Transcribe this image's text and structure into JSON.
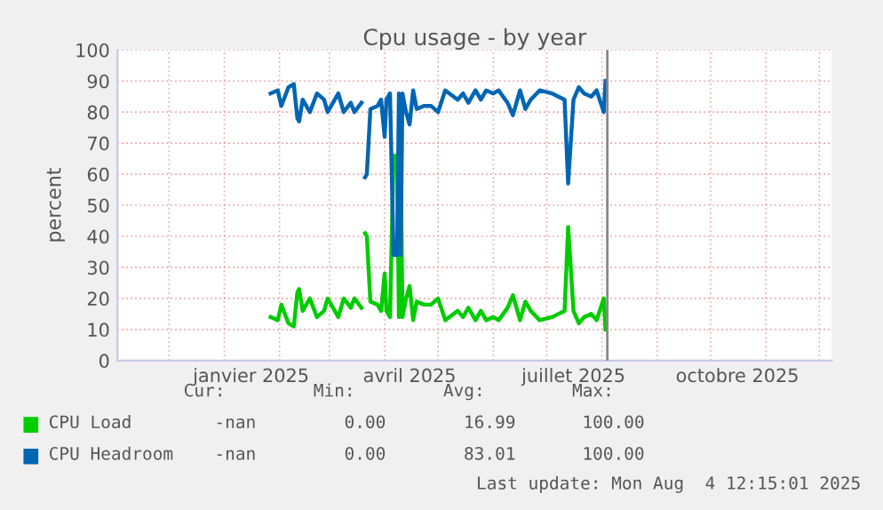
{
  "chart_data": {
    "type": "line",
    "title": "Cpu usage - by year",
    "ylabel": "percent",
    "x": [
      "2025-01-27",
      "2025-01-31",
      "2025-02-02",
      "2025-02-06",
      "2025-02-09",
      "2025-02-11",
      "2025-02-12",
      "2025-02-14",
      "2025-02-18",
      "2025-02-22",
      "2025-02-26",
      "2025-02-28",
      "2025-03-04",
      "2025-03-06",
      "2025-03-09",
      "2025-03-13",
      "2025-03-15",
      "2025-03-19",
      "2025-03-20",
      "2025-03-21",
      "2025-03-22",
      "2025-03-24",
      "2025-03-28",
      "2025-03-30",
      "2025-04-01",
      "2025-04-02",
      "2025-04-04",
      "2025-04-06",
      "2025-04-08",
      "2025-04-09",
      "2025-04-10",
      "2025-04-11",
      "2025-04-13",
      "2025-04-15",
      "2025-04-17",
      "2025-04-19",
      "2025-04-23",
      "2025-04-27",
      "2025-05-01",
      "2025-05-05",
      "2025-05-12",
      "2025-05-15",
      "2025-05-18",
      "2025-05-22",
      "2025-05-25",
      "2025-05-28",
      "2025-06-01",
      "2025-06-04",
      "2025-06-09",
      "2025-06-12",
      "2025-06-16",
      "2025-06-19",
      "2025-06-22",
      "2025-06-27",
      "2025-07-04",
      "2025-07-11",
      "2025-07-13",
      "2025-07-16",
      "2025-07-19",
      "2025-07-22",
      "2025-07-26",
      "2025-07-29",
      "2025-08-02",
      "2025-08-03"
    ],
    "series": [
      {
        "name": "CPU Load",
        "color": "#00cc00",
        "values": [
          14,
          13,
          18,
          12,
          11,
          22,
          23,
          16,
          20,
          14,
          16,
          20,
          16,
          14,
          20,
          17,
          20,
          17,
          null,
          41,
          40,
          19,
          18,
          16,
          28,
          16,
          14,
          66,
          66,
          14,
          66,
          14,
          20,
          24,
          13,
          19,
          18,
          18,
          20,
          13,
          16,
          14,
          17,
          13,
          16,
          13,
          14,
          13,
          17,
          21,
          13,
          19,
          16,
          13,
          14,
          16,
          43,
          16,
          12,
          14,
          15,
          13,
          20,
          10
        ]
      },
      {
        "name": "CPU Headroom",
        "color": "#0066b3",
        "values": [
          86,
          87,
          82,
          88,
          89,
          78,
          77,
          84,
          80,
          86,
          84,
          80,
          84,
          86,
          80,
          83,
          80,
          83,
          null,
          59,
          60,
          81,
          82,
          84,
          72,
          84,
          86,
          34,
          34,
          86,
          34,
          86,
          80,
          76,
          87,
          81,
          82,
          82,
          80,
          87,
          84,
          86,
          83,
          87,
          84,
          87,
          86,
          87,
          83,
          79,
          87,
          81,
          84,
          87,
          86,
          84,
          57,
          84,
          88,
          86,
          85,
          87,
          80,
          90
        ]
      }
    ],
    "xlim": [
      "2024-11-02",
      "2025-12-08"
    ],
    "xticks": [
      {
        "value": "2024-12-01",
        "label": null
      },
      {
        "value": "2025-01-01",
        "label": null
      },
      {
        "value": "2025-01-16",
        "label": "janvier 2025"
      },
      {
        "value": "2025-02-01",
        "label": null
      },
      {
        "value": "2025-03-01",
        "label": null
      },
      {
        "value": "2025-04-01",
        "label": null
      },
      {
        "value": "2025-04-15",
        "label": "avril 2025"
      },
      {
        "value": "2025-05-01",
        "label": null
      },
      {
        "value": "2025-06-01",
        "label": null
      },
      {
        "value": "2025-07-01",
        "label": null
      },
      {
        "value": "2025-07-16",
        "label": "juillet 2025"
      },
      {
        "value": "2025-08-01",
        "label": null
      },
      {
        "value": "2025-09-01",
        "label": null
      },
      {
        "value": "2025-10-01",
        "label": null
      },
      {
        "value": "2025-10-16",
        "label": "octobre 2025"
      },
      {
        "value": "2025-11-01",
        "label": null
      },
      {
        "value": "2025-12-01",
        "label": null
      }
    ],
    "ylim": [
      0,
      100
    ],
    "yticks": [
      0,
      10,
      20,
      30,
      40,
      50,
      60,
      70,
      80,
      90,
      100
    ],
    "grid": true,
    "legend": "bottom",
    "line_style": "solid",
    "marker": "none",
    "ref_lines": [
      {
        "axis": "x",
        "value": "2025-08-04",
        "color": "#888888"
      }
    ],
    "annotations": [
      "Cur:",
      "Min:",
      "Avg:",
      "Max:",
      "-nan",
      "0.00",
      "16.99",
      "100.00",
      "-nan",
      "0.00",
      "83.01",
      "100.00",
      "Last update: Mon Aug  4 12:15:01 2025"
    ]
  }
}
